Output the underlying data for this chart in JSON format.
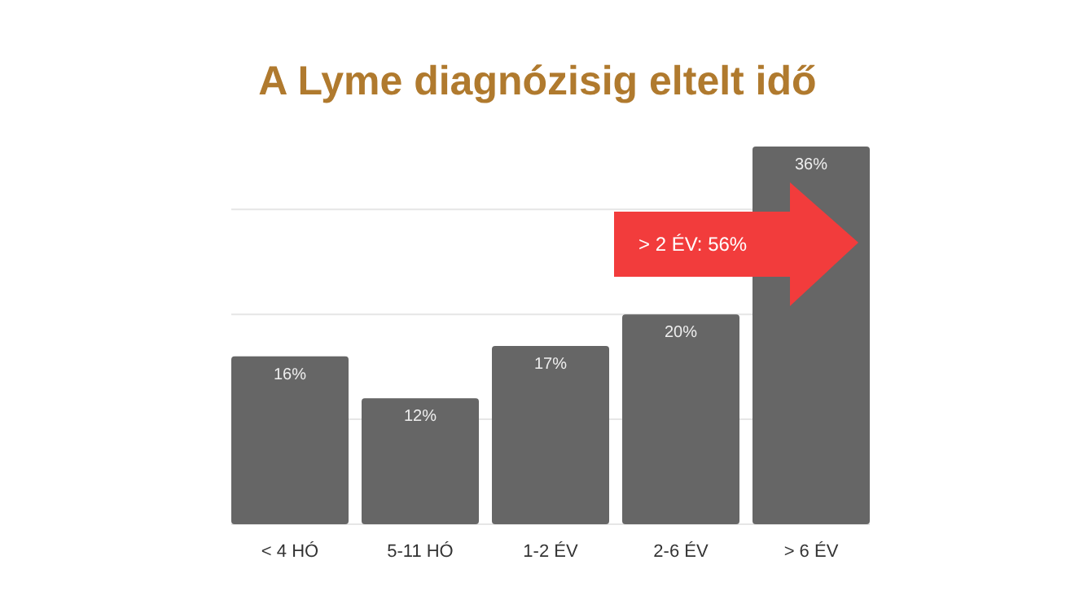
{
  "chart_data": {
    "type": "bar",
    "title": "A Lyme diagnózisig eltelt idő",
    "categories": [
      "< 4 HÓ",
      "5-11 HÓ",
      "1-2 ÉV",
      "2-6 ÉV",
      "> 6 ÉV"
    ],
    "values": [
      16,
      12,
      17,
      20,
      36
    ],
    "color": "#666666",
    "value_labels": [
      "16%",
      "12%",
      "17%",
      "20%",
      "36%"
    ],
    "ylim": [
      0,
      36
    ],
    "yticks": [
      {
        "value": 10,
        "label": null
      },
      {
        "value": 20,
        "label": null
      },
      {
        "value": 30,
        "label": null
      }
    ],
    "grid": "y",
    "tick_labels": "x",
    "annotations": [
      "> 2 ÉV: 56%"
    ]
  }
}
